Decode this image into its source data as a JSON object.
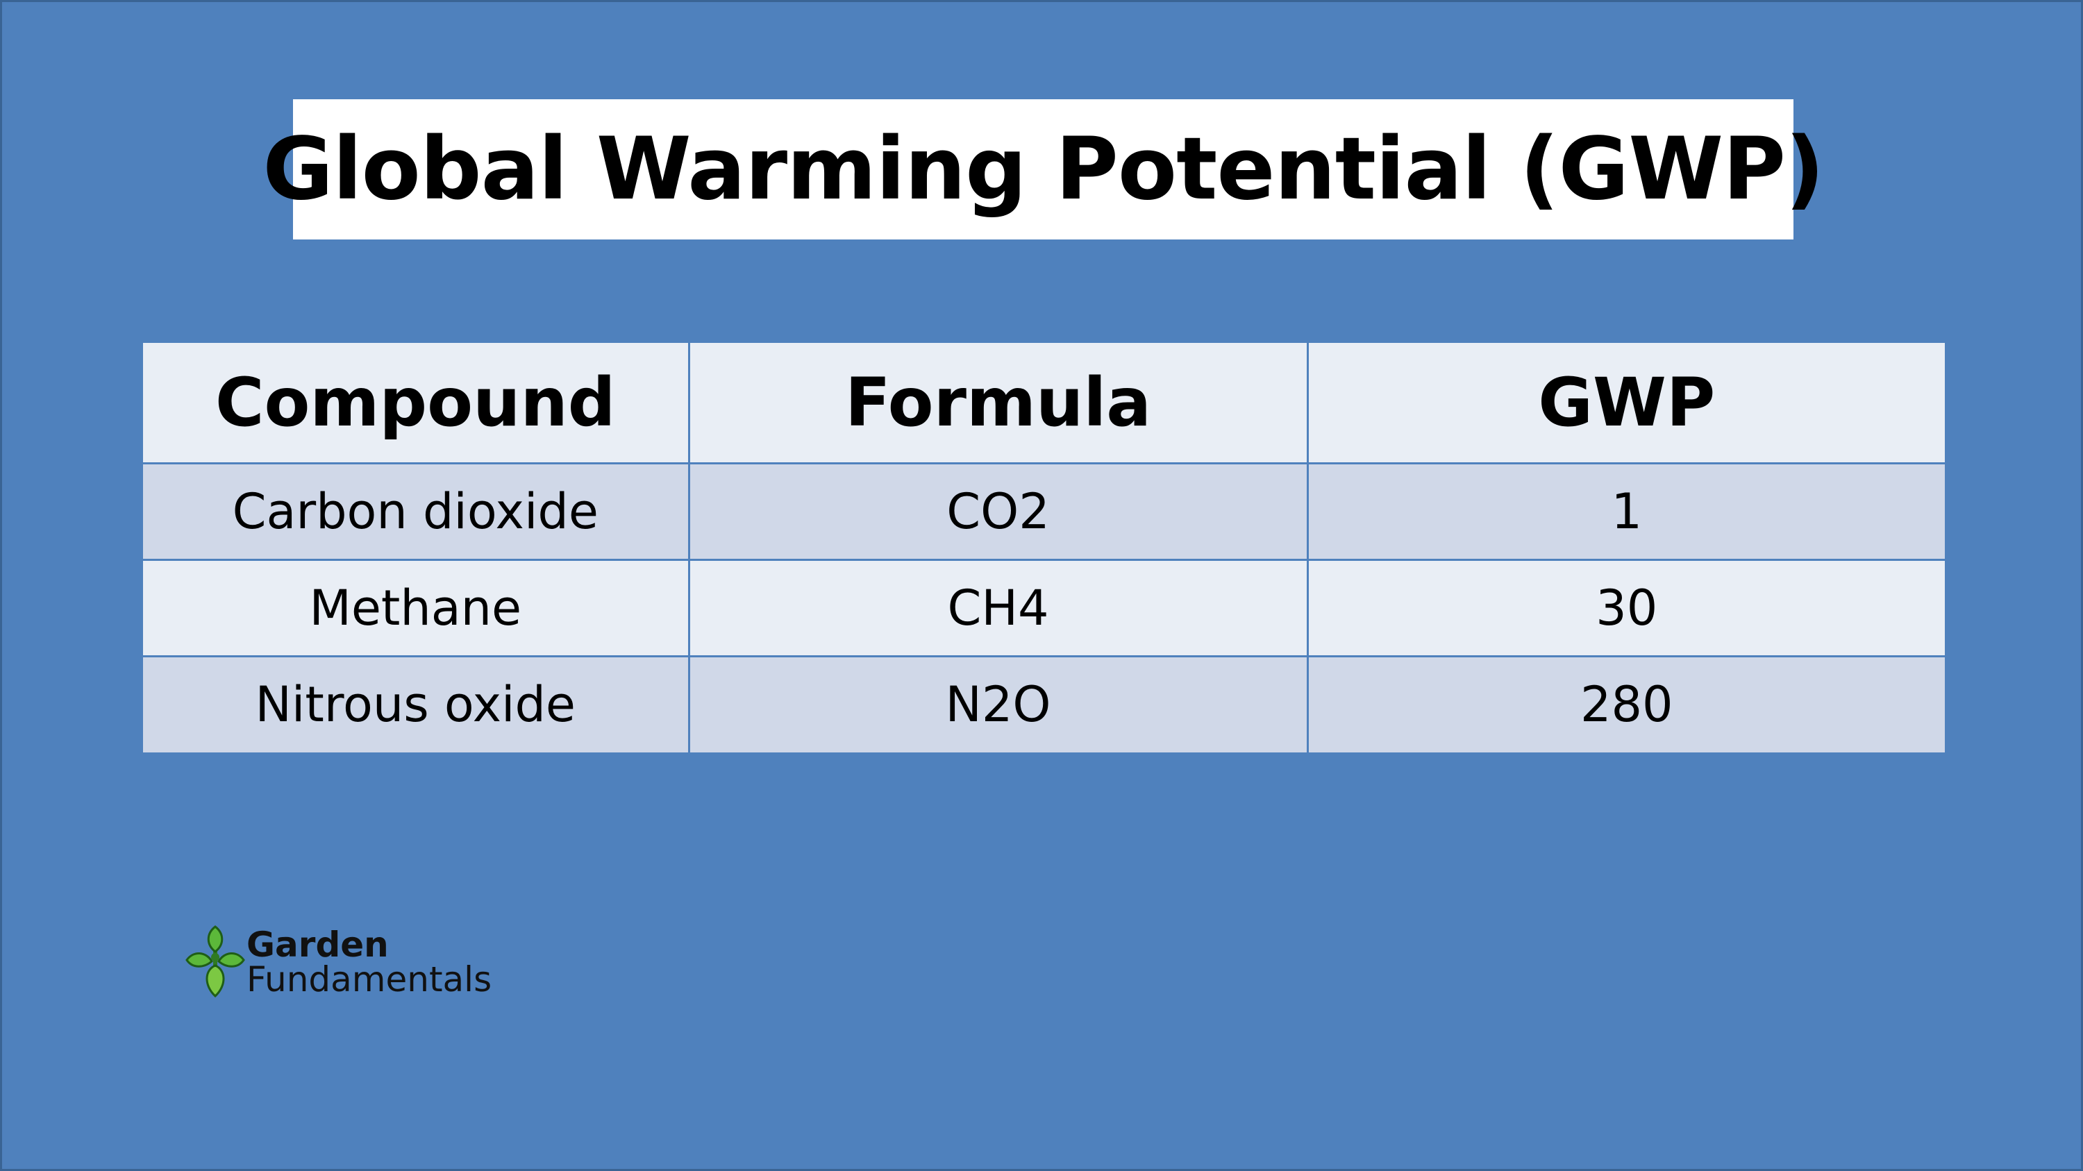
{
  "title": "Global Warming Potential (GWP)",
  "table": {
    "headers": [
      "Compound",
      "Formula",
      "GWP"
    ],
    "rows": [
      [
        "Carbon dioxide",
        "CO2",
        "1"
      ],
      [
        "Methane",
        "CH4",
        "30"
      ],
      [
        "Nitrous oxide",
        "N2O",
        "280"
      ]
    ]
  },
  "logo": {
    "line1": "Garden",
    "line2": "Fundamentals",
    "icon": "garden-leaf-logo"
  },
  "colors": {
    "background": "#4f81bd",
    "header_row": "#e9eef5",
    "band_row": "#d0d8e8",
    "logo_green": "#3f9b2f"
  }
}
